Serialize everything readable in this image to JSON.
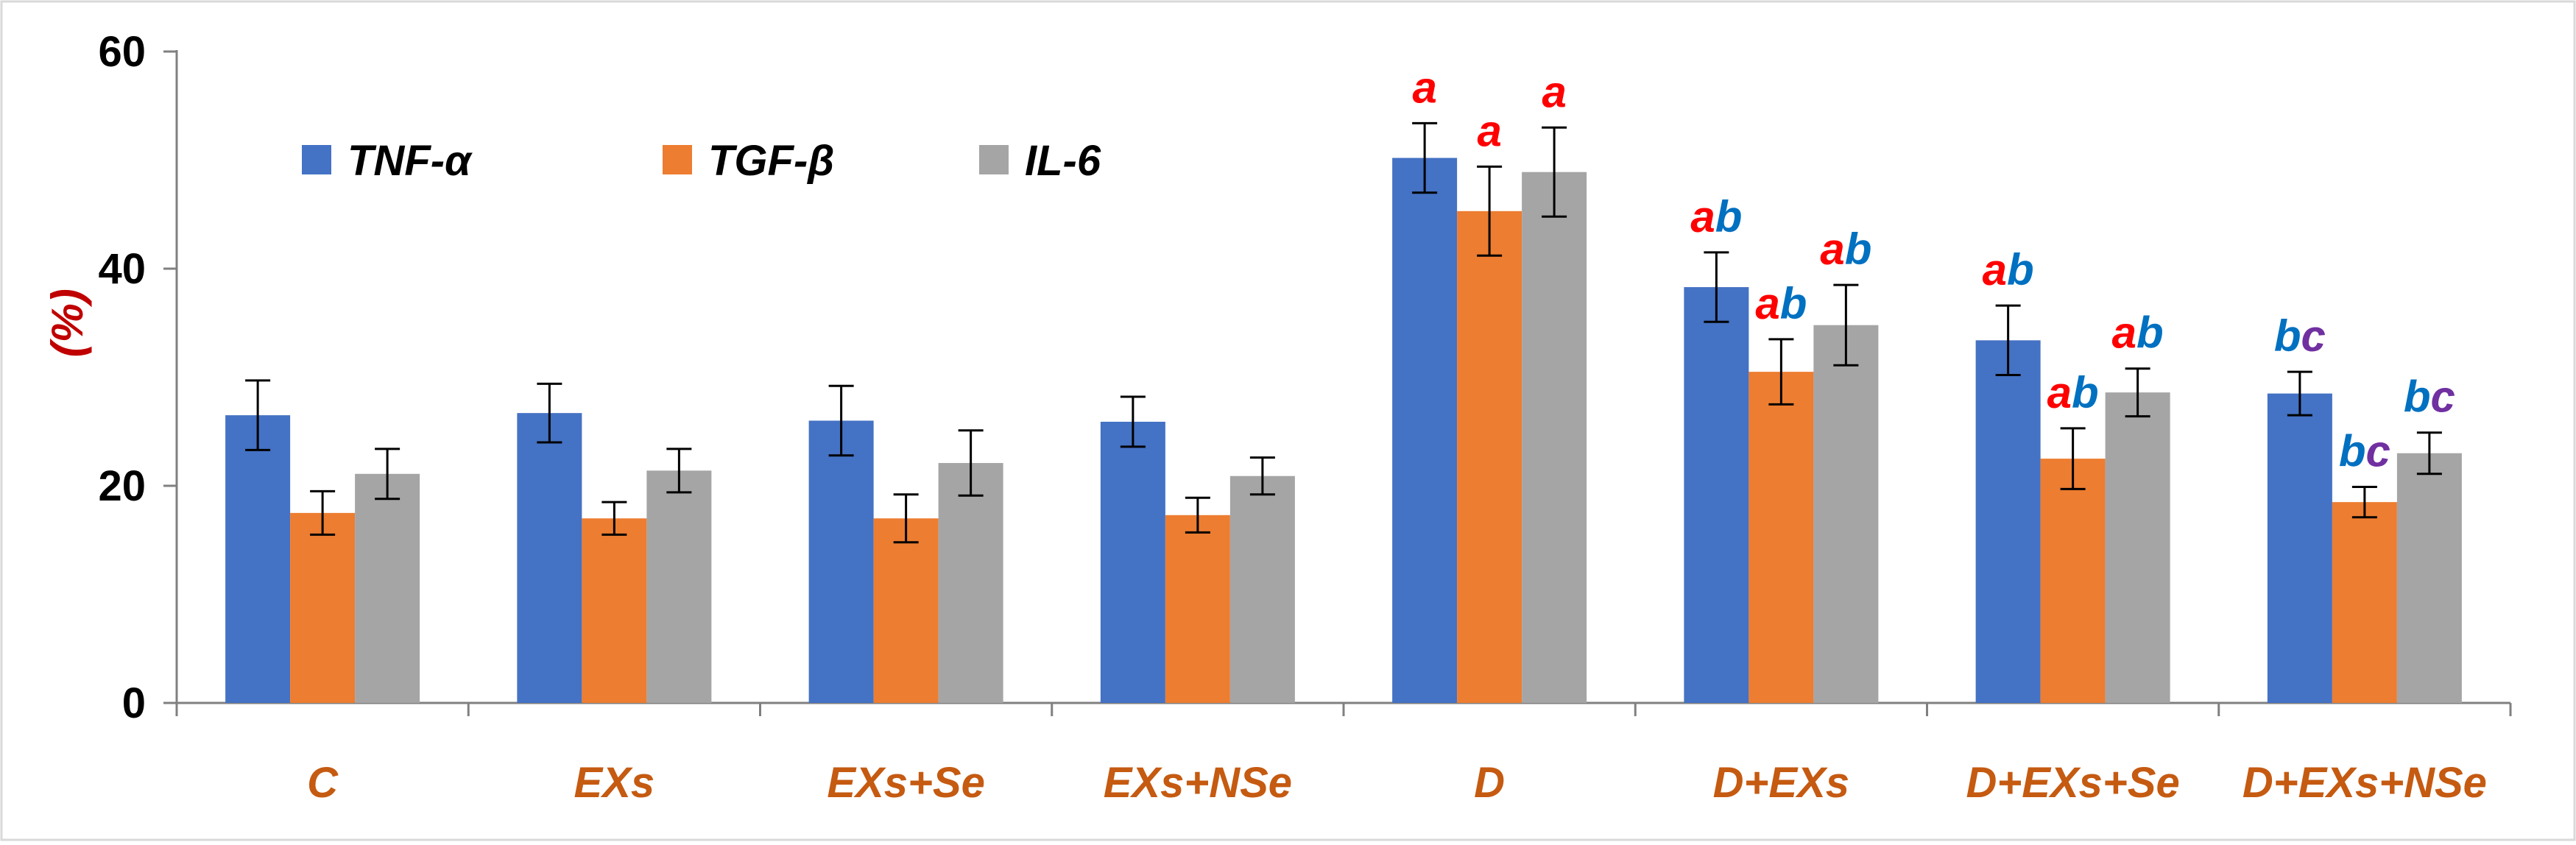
{
  "chart_data": {
    "type": "bar",
    "title": "",
    "xlabel": "",
    "ylabel": "(%)",
    "ylim": [
      0,
      60
    ],
    "yticks": [
      0,
      20,
      40,
      60
    ],
    "grid": false,
    "legend_position": "top-left",
    "categories": [
      "C",
      "EXs",
      "EXs+Se",
      "EXs+NSe",
      "D",
      "D+EXs",
      "D+EXs+Se",
      "D+EXs+NSe"
    ],
    "series": [
      {
        "name": "TNF-α",
        "color": "#4472C4",
        "values": [
          26.5,
          26.7,
          26.0,
          25.9,
          50.2,
          38.3,
          33.4,
          28.5
        ],
        "errors": [
          3.2,
          2.7,
          3.2,
          2.3,
          3.2,
          3.2,
          3.2,
          2.0
        ]
      },
      {
        "name": "TGF-β",
        "color": "#ED7D31",
        "values": [
          17.5,
          17.0,
          17.0,
          17.3,
          45.3,
          30.5,
          22.5,
          18.5
        ],
        "errors": [
          2.0,
          1.5,
          2.2,
          1.6,
          4.1,
          3.0,
          2.8,
          1.4
        ]
      },
      {
        "name": "IL-6",
        "color": "#A5A5A5",
        "values": [
          21.1,
          21.4,
          22.1,
          20.9,
          48.9,
          34.8,
          28.6,
          23.0
        ],
        "errors": [
          2.3,
          2.0,
          3.0,
          1.7,
          4.1,
          3.7,
          2.2,
          1.9
        ]
      }
    ],
    "significance": [
      {
        "category": 4,
        "series": 0,
        "letters": [
          {
            "text": "a",
            "color": "#FF0000"
          }
        ]
      },
      {
        "category": 4,
        "series": 1,
        "letters": [
          {
            "text": "a",
            "color": "#FF0000"
          }
        ]
      },
      {
        "category": 4,
        "series": 2,
        "letters": [
          {
            "text": "a",
            "color": "#FF0000"
          }
        ]
      },
      {
        "category": 5,
        "series": 0,
        "letters": [
          {
            "text": "a",
            "color": "#FF0000"
          },
          {
            "text": "b",
            "color": "#0070C0"
          }
        ]
      },
      {
        "category": 5,
        "series": 1,
        "letters": [
          {
            "text": "a",
            "color": "#FF0000"
          },
          {
            "text": "b",
            "color": "#0070C0"
          }
        ]
      },
      {
        "category": 5,
        "series": 2,
        "letters": [
          {
            "text": "a",
            "color": "#FF0000"
          },
          {
            "text": "b",
            "color": "#0070C0"
          }
        ]
      },
      {
        "category": 6,
        "series": 0,
        "letters": [
          {
            "text": "a",
            "color": "#FF0000"
          },
          {
            "text": "b",
            "color": "#0070C0"
          }
        ]
      },
      {
        "category": 6,
        "series": 1,
        "letters": [
          {
            "text": "a",
            "color": "#FF0000"
          },
          {
            "text": "b",
            "color": "#0070C0"
          }
        ]
      },
      {
        "category": 6,
        "series": 2,
        "letters": [
          {
            "text": "a",
            "color": "#FF0000"
          },
          {
            "text": "b",
            "color": "#0070C0"
          }
        ]
      },
      {
        "category": 7,
        "series": 0,
        "letters": [
          {
            "text": "b",
            "color": "#0070C0"
          },
          {
            "text": "c",
            "color": "#7030A0"
          }
        ]
      },
      {
        "category": 7,
        "series": 1,
        "letters": [
          {
            "text": "b",
            "color": "#0070C0"
          },
          {
            "text": "c",
            "color": "#7030A0"
          }
        ]
      },
      {
        "category": 7,
        "series": 2,
        "letters": [
          {
            "text": "b",
            "color": "#0070C0"
          },
          {
            "text": "c",
            "color": "#7030A0"
          }
        ]
      }
    ],
    "colors": {
      "category_label": "#C55A11",
      "ylabel": "#C00000",
      "axis": "#808080"
    }
  }
}
